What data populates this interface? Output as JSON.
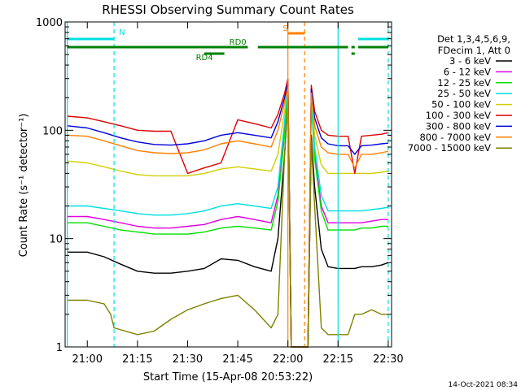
{
  "chart_data": {
    "type": "line",
    "title": "RHESSI Observing Summary Count Rates",
    "xlabel": "Start Time (15-Apr-08 20:53:22)",
    "ylabel": "Count Rate (s⁻¹ detector⁻¹)",
    "y_scale": "log",
    "ylim": [
      1,
      1000
    ],
    "xlim": [
      "20:53:22",
      "22:31:00"
    ],
    "x_ticks": [
      "21:00",
      "21:15",
      "21:30",
      "21:45",
      "22:00",
      "22:15",
      "22:30"
    ],
    "y_ticks": [
      "1",
      "10",
      "100",
      "1000"
    ],
    "legend_title": [
      "Det 1,3,4,5,6,9,",
      "FDecim 1, Att 0"
    ],
    "legend_placement": "right",
    "timestamp": "14-Oct-2021 08:34",
    "series": [
      {
        "name": "3 - 6 keV",
        "color": "#000000",
        "x": [
          "20:54",
          "21:00",
          "21:05",
          "21:10",
          "21:15",
          "21:20",
          "21:25",
          "21:30",
          "21:35",
          "21:40",
          "21:45",
          "21:50",
          "21:55",
          "21:57",
          "21:59",
          "22:00",
          "22:01",
          "22:06",
          "22:07",
          "22:08",
          "22:10",
          "22:12",
          "22:15",
          "22:18",
          "22:20",
          "22:22",
          "22:25",
          "22:28",
          "22:30"
        ],
        "y": [
          7.5,
          7.5,
          6.8,
          5.8,
          5.0,
          4.8,
          4.8,
          5.0,
          5.3,
          6.5,
          6.3,
          5.5,
          5.0,
          10,
          60,
          180,
          1,
          1,
          90,
          30,
          8,
          5.5,
          5.3,
          5.3,
          5.3,
          5.5,
          5.5,
          5.7,
          6.0
        ]
      },
      {
        "name": "6 - 12 keV",
        "color": "#e000e0",
        "x": [
          "20:54",
          "21:00",
          "21:05",
          "21:10",
          "21:15",
          "21:20",
          "21:25",
          "21:30",
          "21:35",
          "21:40",
          "21:45",
          "21:50",
          "21:55",
          "21:57",
          "21:59",
          "22:00",
          "22:01",
          "22:06",
          "22:07",
          "22:08",
          "22:10",
          "22:12",
          "22:15",
          "22:18",
          "22:20",
          "22:22",
          "22:25",
          "22:28",
          "22:30"
        ],
        "y": [
          16,
          16,
          15,
          14,
          13,
          12.5,
          12.5,
          13,
          13.5,
          15,
          16,
          15,
          14,
          25,
          100,
          250,
          1,
          1,
          200,
          60,
          20,
          14,
          14,
          14,
          14,
          14,
          14.5,
          15,
          15
        ]
      },
      {
        "name": "12 - 25 keV",
        "color": "#00e000",
        "x": [
          "20:54",
          "21:00",
          "21:05",
          "21:10",
          "21:15",
          "21:20",
          "21:25",
          "21:30",
          "21:35",
          "21:40",
          "21:45",
          "21:50",
          "21:55",
          "21:57",
          "21:59",
          "22:00",
          "22:01",
          "22:06",
          "22:07",
          "22:08",
          "22:10",
          "22:12",
          "22:15",
          "22:18",
          "22:20",
          "22:22",
          "22:25",
          "22:28",
          "22:30"
        ],
        "y": [
          14,
          14,
          13,
          12,
          11.5,
          11,
          11,
          11,
          11.5,
          12.5,
          13,
          12.5,
          12,
          22,
          90,
          230,
          1,
          1,
          190,
          55,
          18,
          12,
          12,
          12,
          12,
          12.5,
          12.5,
          13,
          13
        ]
      },
      {
        "name": "25 - 50 keV",
        "color": "#00e0e0",
        "x": [
          "20:54",
          "21:00",
          "21:05",
          "21:10",
          "21:15",
          "21:20",
          "21:25",
          "21:30",
          "21:35",
          "21:40",
          "21:45",
          "21:50",
          "21:55",
          "21:57",
          "21:59",
          "22:00",
          "22:01",
          "22:06",
          "22:07",
          "22:08",
          "22:10",
          "22:12",
          "22:15",
          "22:18",
          "22:20",
          "22:22",
          "22:25",
          "22:28",
          "22:30"
        ],
        "y": [
          20,
          20,
          19,
          18,
          17,
          16.5,
          16.5,
          17,
          18,
          20,
          21,
          20,
          19,
          30,
          120,
          260,
          1,
          1,
          210,
          70,
          25,
          18,
          18,
          18,
          18,
          18,
          18.5,
          19,
          19.5
        ]
      },
      {
        "name": "50 - 100 keV",
        "color": "#d0d000",
        "x": [
          "20:54",
          "21:00",
          "21:05",
          "21:10",
          "21:15",
          "21:20",
          "21:25",
          "21:30",
          "21:35",
          "21:40",
          "21:45",
          "21:50",
          "21:55",
          "21:57",
          "21:59",
          "22:00",
          "22:01",
          "22:06",
          "22:07",
          "22:08",
          "22:10",
          "22:12",
          "22:15",
          "22:18",
          "22:20",
          "22:22",
          "22:25",
          "22:28",
          "22:30"
        ],
        "y": [
          52,
          50,
          46,
          42,
          39,
          38,
          38,
          38,
          40,
          44,
          46,
          44,
          42,
          60,
          150,
          280,
          1,
          1,
          230,
          90,
          48,
          40,
          40,
          40,
          40,
          40,
          40,
          41,
          42
        ]
      },
      {
        "name": "100 - 300 keV",
        "color": "#e00000",
        "x": [
          "20:54",
          "21:00",
          "21:05",
          "21:10",
          "21:15",
          "21:20",
          "21:25",
          "21:30",
          "21:35",
          "21:40",
          "21:45",
          "21:50",
          "21:55",
          "21:57",
          "21:59",
          "22:00",
          "22:01",
          "22:06",
          "22:07",
          "22:08",
          "22:10",
          "22:12",
          "22:15",
          "22:18",
          "22:20",
          "22:22",
          "22:25",
          "22:28",
          "22:30"
        ],
        "y": [
          135,
          130,
          120,
          110,
          100,
          98,
          98,
          40,
          45,
          50,
          125,
          115,
          105,
          140,
          220,
          300,
          1,
          1,
          260,
          150,
          100,
          90,
          88,
          88,
          40,
          88,
          90,
          92,
          95
        ]
      },
      {
        "name": "300 - 800 keV",
        "color": "#0000e0",
        "x": [
          "20:54",
          "21:00",
          "21:05",
          "21:10",
          "21:15",
          "21:20",
          "21:25",
          "21:30",
          "21:35",
          "21:40",
          "21:45",
          "21:50",
          "21:55",
          "21:57",
          "21:59",
          "22:00",
          "22:01",
          "22:06",
          "22:07",
          "22:08",
          "22:10",
          "22:12",
          "22:15",
          "22:18",
          "22:20",
          "22:22",
          "22:25",
          "22:28",
          "22:30"
        ],
        "y": [
          110,
          105,
          95,
          85,
          78,
          74,
          73,
          75,
          80,
          90,
          95,
          90,
          85,
          120,
          200,
          270,
          1,
          1,
          240,
          130,
          85,
          75,
          72,
          72,
          60,
          72,
          73,
          75,
          76
        ]
      },
      {
        "name": "800 - 7000 keV",
        "color": "#ff8000",
        "x": [
          "20:54",
          "21:00",
          "21:05",
          "21:10",
          "21:15",
          "21:20",
          "21:25",
          "21:30",
          "21:35",
          "21:40",
          "21:45",
          "21:50",
          "21:55",
          "21:57",
          "21:59",
          "22:00",
          "22:01",
          "22:06",
          "22:07",
          "22:08",
          "22:10",
          "22:12",
          "22:15",
          "22:18",
          "22:20",
          "22:22",
          "22:25",
          "22:28",
          "22:30"
        ],
        "y": [
          90,
          88,
          80,
          72,
          65,
          62,
          61,
          62,
          66,
          75,
          80,
          75,
          70,
          100,
          180,
          250,
          1,
          1,
          220,
          110,
          70,
          62,
          60,
          60,
          45,
          60,
          60,
          62,
          64
        ]
      },
      {
        "name": "7000 - 15000 keV",
        "color": "#808000",
        "x": [
          "20:54",
          "21:00",
          "21:05",
          "21:07",
          "21:08",
          "21:15",
          "21:20",
          "21:25",
          "21:30",
          "21:35",
          "21:40",
          "21:45",
          "21:50",
          "21:55",
          "21:57",
          "21:59",
          "22:00",
          "22:01",
          "22:06",
          "22:07",
          "22:08",
          "22:10",
          "22:12",
          "22:15",
          "22:18",
          "22:20",
          "22:22",
          "22:25",
          "22:28",
          "22:30"
        ],
        "y": [
          2.7,
          2.7,
          2.5,
          2.0,
          1.5,
          1.3,
          1.4,
          1.8,
          2.2,
          2.5,
          2.8,
          3.0,
          2.2,
          1.5,
          2.0,
          60,
          180,
          1,
          1,
          80,
          20,
          1.5,
          1.3,
          1.3,
          1.3,
          2.0,
          2.0,
          2.2,
          2.0,
          2.0
        ]
      }
    ],
    "annotations": [
      {
        "text": "N",
        "color": "#00e0e0",
        "segments": [
          [
            "20:54",
            "21:08"
          ],
          [
            "22:21",
            "22:30"
          ]
        ]
      },
      {
        "text": "RD0",
        "color": "#008000",
        "segments": [
          [
            "20:54",
            "21:48"
          ],
          [
            "21:51",
            "22:18"
          ],
          [
            "22:19",
            "22:20"
          ],
          [
            "22:21",
            "22:30"
          ]
        ]
      },
      {
        "text": "RD4",
        "color": "#008000",
        "segments": [
          [
            "21:35",
            "21:41"
          ],
          [
            "22:19",
            "22:20"
          ]
        ]
      },
      {
        "text": "S",
        "color": "#ff8000",
        "segments": [
          [
            "22:00",
            "22:05"
          ]
        ]
      }
    ],
    "vertical_lines": [
      {
        "x": "20:54",
        "color": "#00e0e0",
        "style": "solid"
      },
      {
        "x": "21:08",
        "color": "#00e0e0",
        "style": "dashed"
      },
      {
        "x": "22:00",
        "color": "#ff8000",
        "style": "solid"
      },
      {
        "x": "22:05",
        "color": "#ff8000",
        "style": "dashed"
      },
      {
        "x": "22:15",
        "color": "#00e0e0",
        "style": "solid"
      },
      {
        "x": "22:30",
        "color": "#00e0e0",
        "style": "dashed"
      }
    ]
  }
}
